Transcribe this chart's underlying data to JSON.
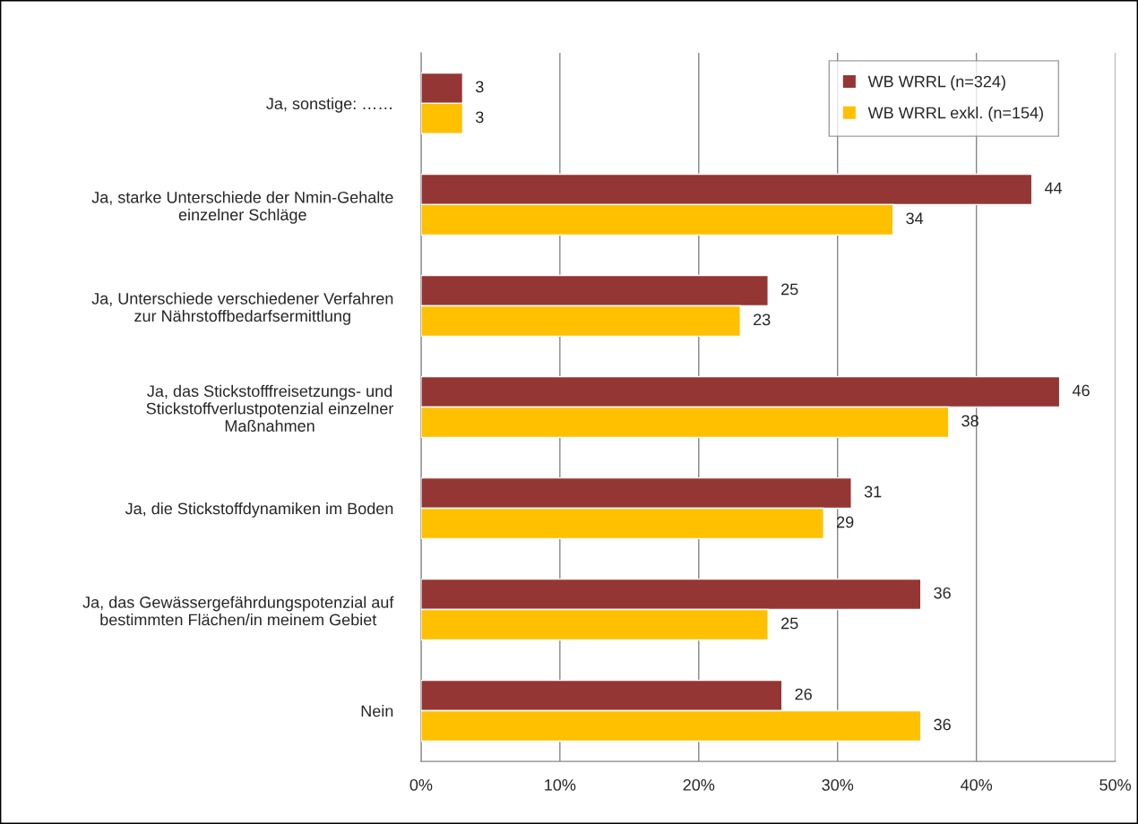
{
  "chart_data": {
    "type": "bar",
    "orientation": "horizontal",
    "categories": [
      "Ja, sonstige: ……",
      "Ja, starke Unterschiede der Nmin-Gehalte\neinzelner Schläge",
      "Ja, Unterschiede verschiedener Verfahren\nzur Nährstoffbedarfsermittlung",
      "Ja, das Stickstofffreisetzungs- und\nStickstoffverlustpotenzial einzelner\nMaßnahmen",
      "Ja, die Stickstoffdynamiken im Boden",
      "Ja, das Gewässergefährdungspotenzial auf\nbestimmten Flächen/in meinem Gebiet",
      "Nein"
    ],
    "series": [
      {
        "name": "WB WRRL (n=324)",
        "color": "#943634",
        "values": [
          3,
          44,
          25,
          46,
          31,
          36,
          26
        ]
      },
      {
        "name": "WB WRRL exkl. (n=154)",
        "color": "#ffc000",
        "values": [
          3,
          34,
          23,
          38,
          29,
          25,
          36
        ]
      }
    ],
    "xlim": [
      0,
      50
    ],
    "xticks": [
      {
        "value": 0,
        "label": "0%"
      },
      {
        "value": 10,
        "label": "10%"
      },
      {
        "value": 20,
        "label": "20%"
      },
      {
        "value": 30,
        "label": "30%"
      },
      {
        "value": 40,
        "label": "40%"
      },
      {
        "value": 50,
        "label": "50%"
      }
    ],
    "data_labels": true,
    "grid": "x",
    "legend": "top right"
  }
}
